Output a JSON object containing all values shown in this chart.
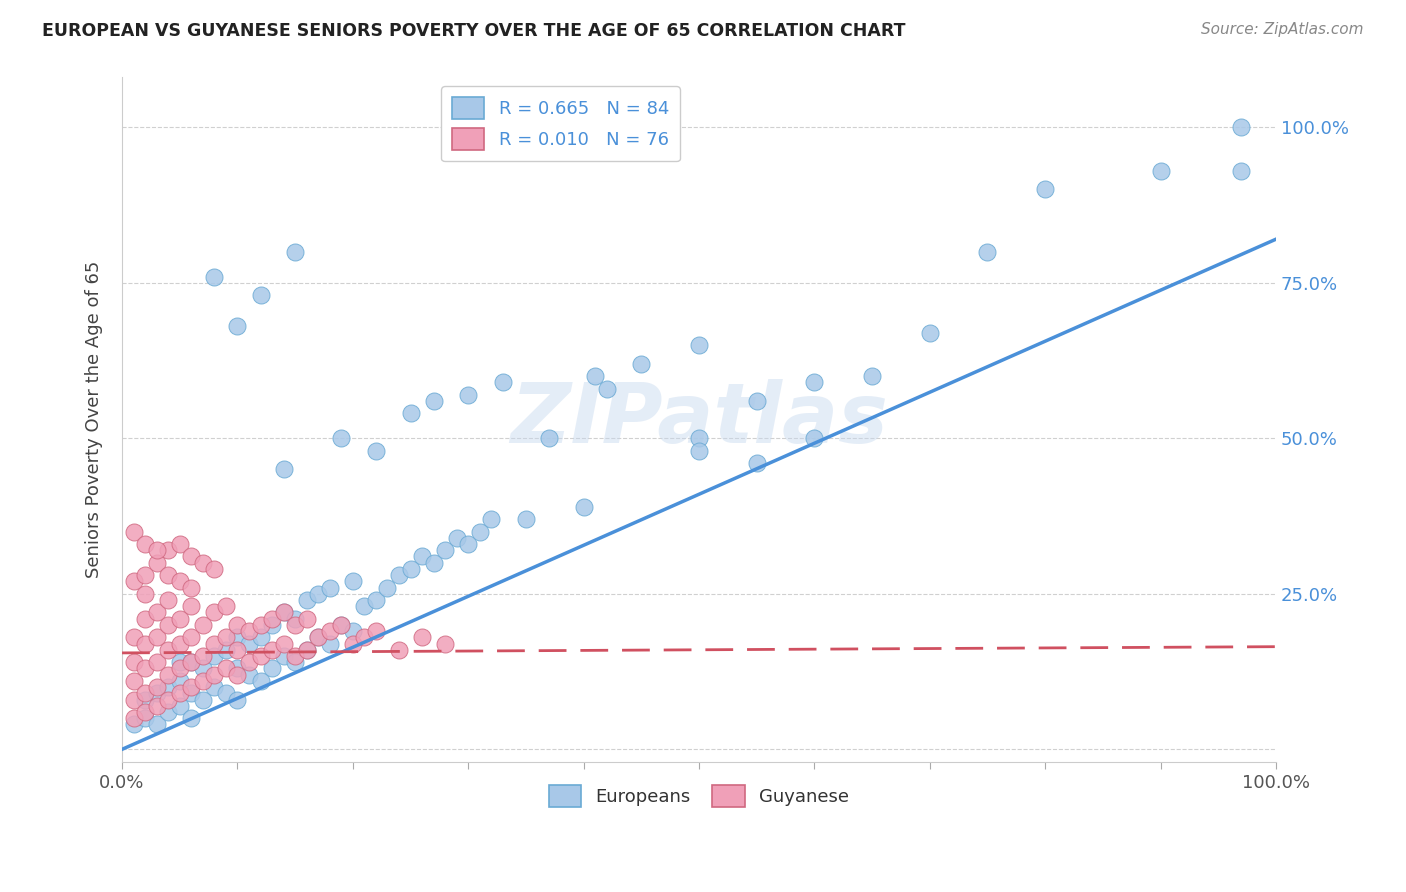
{
  "title": "EUROPEAN VS GUYANESE SENIORS POVERTY OVER THE AGE OF 65 CORRELATION CHART",
  "source": "Source: ZipAtlas.com",
  "ylabel": "Seniors Poverty Over the Age of 65",
  "xlim": [
    0.0,
    1.0
  ],
  "ylim": [
    -0.02,
    1.08
  ],
  "european_color": "#a8c8e8",
  "european_edge": "#6aaad4",
  "guyanese_color": "#f0a0b8",
  "guyanese_edge": "#d06880",
  "line_color_european": "#4a90d9",
  "line_color_guyanese": "#d05060",
  "watermark": "ZIPatlas",
  "legend_R_european": "R = 0.665",
  "legend_N_european": "N = 84",
  "legend_R_guyanese": "R = 0.010",
  "legend_N_guyanese": "N = 76",
  "eu_line_x0": 0.0,
  "eu_line_y0": 0.0,
  "eu_line_x1": 1.0,
  "eu_line_y1": 0.82,
  "gu_line_x0": 0.0,
  "gu_line_y0": 0.155,
  "gu_line_x1": 1.0,
  "gu_line_y1": 0.165,
  "european_x": [
    0.01,
    0.02,
    0.02,
    0.03,
    0.03,
    0.04,
    0.04,
    0.05,
    0.05,
    0.05,
    0.06,
    0.06,
    0.06,
    0.07,
    0.07,
    0.08,
    0.08,
    0.09,
    0.09,
    0.1,
    0.1,
    0.1,
    0.11,
    0.11,
    0.12,
    0.12,
    0.13,
    0.13,
    0.14,
    0.14,
    0.15,
    0.15,
    0.16,
    0.16,
    0.17,
    0.17,
    0.18,
    0.18,
    0.19,
    0.2,
    0.2,
    0.21,
    0.22,
    0.23,
    0.24,
    0.25,
    0.26,
    0.27,
    0.28,
    0.29,
    0.3,
    0.31,
    0.32,
    0.14,
    0.19,
    0.22,
    0.25,
    0.27,
    0.3,
    0.33,
    0.37,
    0.41,
    0.45,
    0.5,
    0.55,
    0.6,
    0.65,
    0.4,
    0.5,
    0.6,
    0.7,
    0.8,
    0.9,
    0.97,
    0.97,
    0.75,
    0.5,
    0.42,
    0.35,
    0.55,
    0.08,
    0.1,
    0.12,
    0.15
  ],
  "european_y": [
    0.04,
    0.05,
    0.08,
    0.04,
    0.09,
    0.06,
    0.1,
    0.07,
    0.11,
    0.14,
    0.05,
    0.09,
    0.14,
    0.08,
    0.13,
    0.1,
    0.15,
    0.09,
    0.16,
    0.08,
    0.13,
    0.18,
    0.12,
    0.17,
    0.11,
    0.18,
    0.13,
    0.2,
    0.15,
    0.22,
    0.14,
    0.21,
    0.16,
    0.24,
    0.18,
    0.25,
    0.17,
    0.26,
    0.2,
    0.19,
    0.27,
    0.23,
    0.24,
    0.26,
    0.28,
    0.29,
    0.31,
    0.3,
    0.32,
    0.34,
    0.33,
    0.35,
    0.37,
    0.45,
    0.5,
    0.48,
    0.54,
    0.56,
    0.57,
    0.59,
    0.5,
    0.6,
    0.62,
    0.5,
    0.46,
    0.5,
    0.6,
    0.39,
    0.48,
    0.59,
    0.67,
    0.9,
    0.93,
    0.93,
    1.0,
    0.8,
    0.65,
    0.58,
    0.37,
    0.56,
    0.76,
    0.68,
    0.73,
    0.8
  ],
  "guyanese_x": [
    0.01,
    0.01,
    0.01,
    0.01,
    0.01,
    0.02,
    0.02,
    0.02,
    0.02,
    0.02,
    0.02,
    0.03,
    0.03,
    0.03,
    0.03,
    0.03,
    0.04,
    0.04,
    0.04,
    0.04,
    0.04,
    0.05,
    0.05,
    0.05,
    0.05,
    0.06,
    0.06,
    0.06,
    0.06,
    0.07,
    0.07,
    0.07,
    0.08,
    0.08,
    0.08,
    0.09,
    0.09,
    0.09,
    0.1,
    0.1,
    0.1,
    0.11,
    0.11,
    0.12,
    0.12,
    0.13,
    0.13,
    0.14,
    0.14,
    0.15,
    0.15,
    0.16,
    0.16,
    0.17,
    0.18,
    0.19,
    0.2,
    0.21,
    0.22,
    0.24,
    0.26,
    0.28,
    0.01,
    0.02,
    0.03,
    0.04,
    0.05,
    0.06,
    0.07,
    0.08,
    0.01,
    0.02,
    0.03,
    0.04,
    0.05,
    0.06
  ],
  "guyanese_y": [
    0.05,
    0.08,
    0.11,
    0.14,
    0.18,
    0.06,
    0.09,
    0.13,
    0.17,
    0.21,
    0.25,
    0.07,
    0.1,
    0.14,
    0.18,
    0.22,
    0.08,
    0.12,
    0.16,
    0.2,
    0.24,
    0.09,
    0.13,
    0.17,
    0.21,
    0.1,
    0.14,
    0.18,
    0.23,
    0.11,
    0.15,
    0.2,
    0.12,
    0.17,
    0.22,
    0.13,
    0.18,
    0.23,
    0.12,
    0.16,
    0.2,
    0.14,
    0.19,
    0.15,
    0.2,
    0.16,
    0.21,
    0.17,
    0.22,
    0.15,
    0.2,
    0.16,
    0.21,
    0.18,
    0.19,
    0.2,
    0.17,
    0.18,
    0.19,
    0.16,
    0.18,
    0.17,
    0.27,
    0.28,
    0.3,
    0.32,
    0.33,
    0.31,
    0.3,
    0.29,
    0.35,
    0.33,
    0.32,
    0.28,
    0.27,
    0.26
  ]
}
